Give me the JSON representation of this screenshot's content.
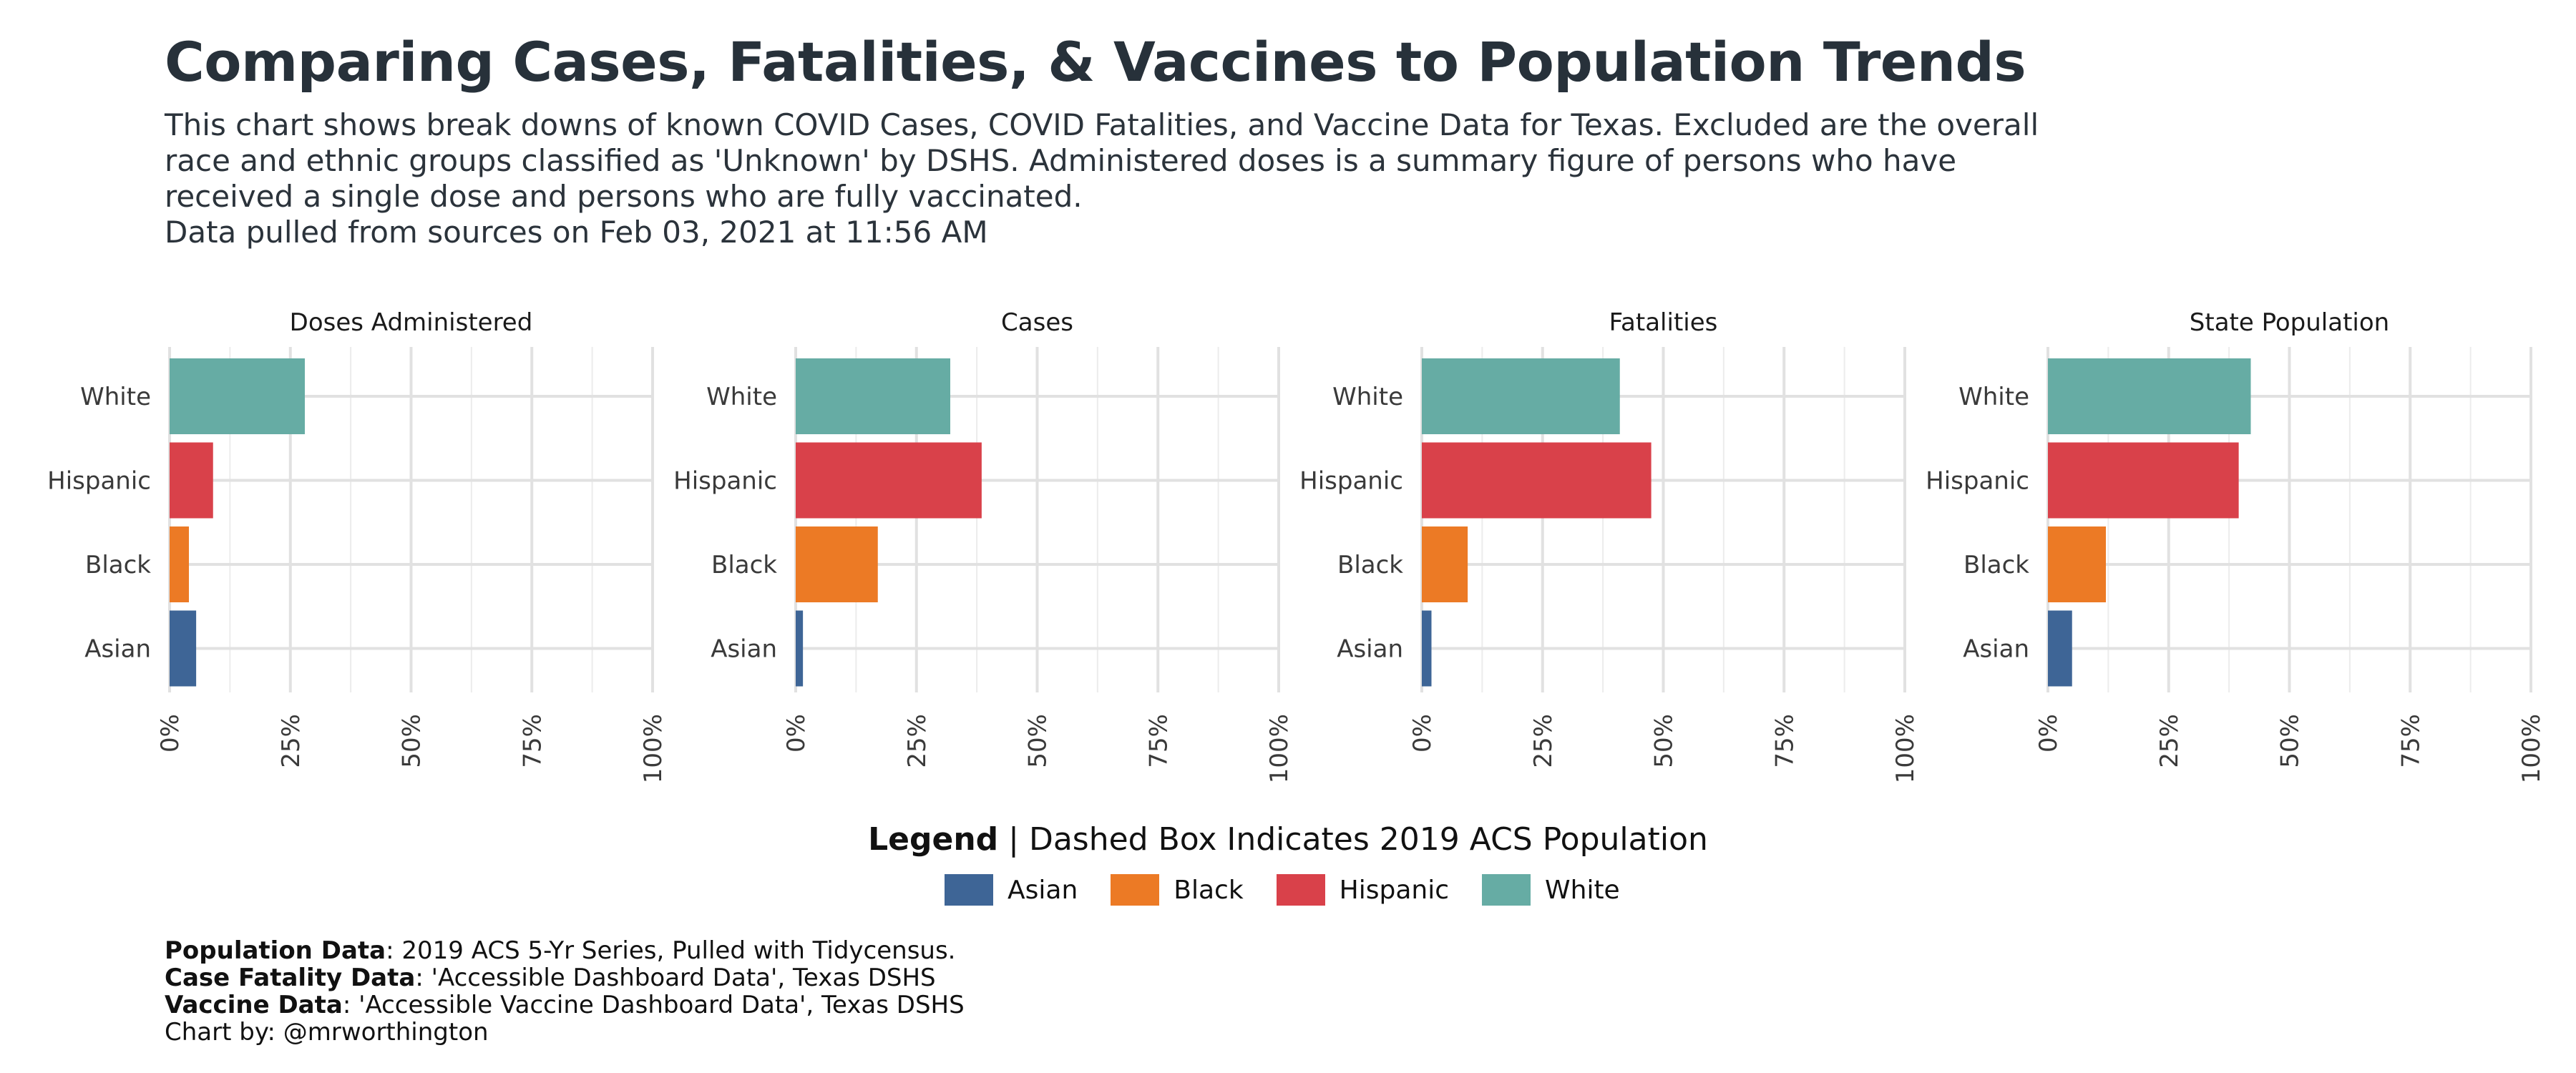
{
  "title": "Comparing Cases, Fatalities, & Vaccines to Population Trends",
  "subtitle": "This chart shows break downs of known COVID Cases, COVID Fatalities, and Vaccine Data for Texas. Excluded are the overall\nrace and ethnic groups classified as 'Unknown' by DSHS. Administered doses is a summary figure of persons who have\nreceived a single dose and persons who are fully vaccinated.\nData pulled from sources on Feb 03, 2021 at 11:56 AM",
  "legend": {
    "title_bold": "Legend",
    "title_rest": " | Dashed Box Indicates 2019 ACS Population",
    "items": [
      {
        "label": "Asian",
        "color": "#3e6596"
      },
      {
        "label": "Black",
        "color": "#ec7a25"
      },
      {
        "label": "Hispanic",
        "color": "#d9414a"
      },
      {
        "label": "White",
        "color": "#66aca4"
      }
    ]
  },
  "caption": [
    {
      "bold": "Population Data",
      "text": ": 2019 ACS 5-Yr Series, Pulled with Tidycensus."
    },
    {
      "bold": "Case Fatality Data",
      "text": ": 'Accessible Dashboard Data', Texas DSHS"
    },
    {
      "bold": "Vaccine Data",
      "text": ": 'Accessible Vaccine Dashboard Data', Texas DSHS"
    },
    {
      "bold": "",
      "text": "Chart by: @mrworthington"
    }
  ],
  "chart_data": {
    "type": "bar",
    "orientation": "horizontal",
    "categories": [
      "White",
      "Hispanic",
      "Black",
      "Asian"
    ],
    "colors": {
      "White": "#66aca4",
      "Hispanic": "#d9414a",
      "Black": "#ec7a25",
      "Asian": "#3e6596"
    },
    "xlim": [
      0,
      100
    ],
    "xticks": [
      "0%",
      "25%",
      "50%",
      "75%",
      "100%"
    ],
    "grid": true,
    "panels": [
      {
        "title": "Doses Administered",
        "values": [
          28,
          9,
          4,
          5.5
        ]
      },
      {
        "title": "Cases",
        "values": [
          32,
          38.5,
          17,
          1.5
        ]
      },
      {
        "title": "Fatalities",
        "values": [
          41,
          47.5,
          9.5,
          2
        ]
      },
      {
        "title": "State Population",
        "values": [
          42,
          39.5,
          12,
          5
        ]
      }
    ]
  }
}
